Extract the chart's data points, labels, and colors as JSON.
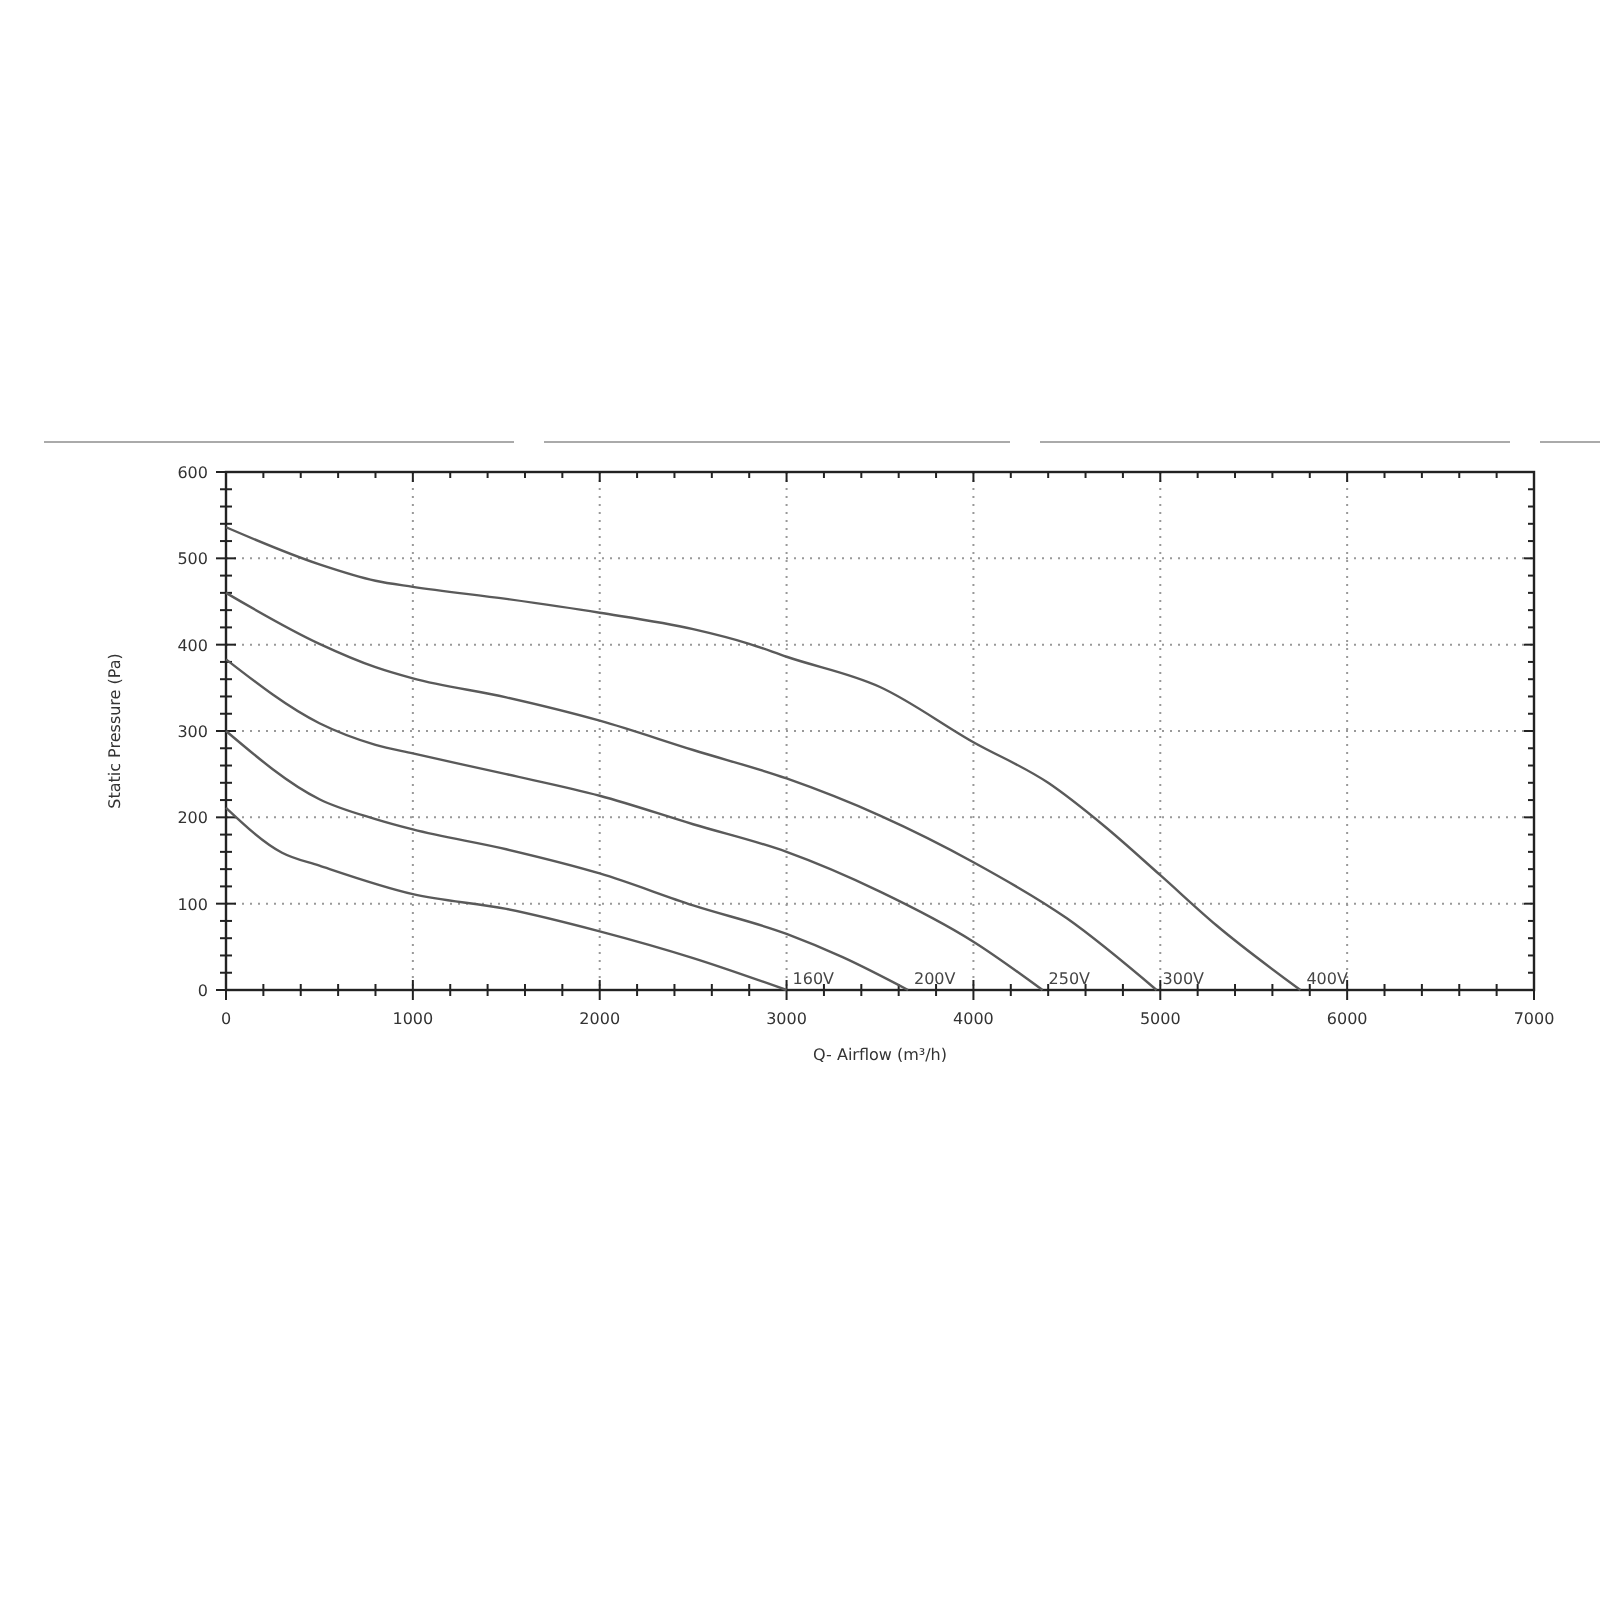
{
  "chart_data": {
    "type": "line",
    "xlabel": "Q- Airflow (m³/h)",
    "ylabel": "Static Pressure (Pa)",
    "xlim": [
      0,
      7000
    ],
    "ylim": [
      0,
      600
    ],
    "xticks": [
      0,
      {
        "value": 200,
        "label": null
      },
      {
        "value": 400,
        "label": null
      },
      {
        "value": 600,
        "label": null
      },
      {
        "value": 800,
        "label": null
      },
      1000,
      {
        "value": 1200,
        "label": null
      },
      {
        "value": 1400,
        "label": null
      },
      {
        "value": 1600,
        "label": null
      },
      {
        "value": 1800,
        "label": null
      },
      2000,
      {
        "value": 2200,
        "label": null
      },
      {
        "value": 2400,
        "label": null
      },
      {
        "value": 2600,
        "label": null
      },
      {
        "value": 2800,
        "label": null
      },
      3000,
      {
        "value": 3200,
        "label": null
      },
      {
        "value": 3400,
        "label": null
      },
      {
        "value": 3600,
        "label": null
      },
      {
        "value": 3800,
        "label": null
      },
      4000,
      {
        "value": 4200,
        "label": null
      },
      {
        "value": 4400,
        "label": null
      },
      {
        "value": 4600,
        "label": null
      },
      {
        "value": 4800,
        "label": null
      },
      5000,
      {
        "value": 5200,
        "label": null
      },
      {
        "value": 5400,
        "label": null
      },
      {
        "value": 5600,
        "label": null
      },
      {
        "value": 5800,
        "label": null
      },
      6000,
      {
        "value": 6200,
        "label": null
      },
      {
        "value": 6400,
        "label": null
      },
      {
        "value": 6600,
        "label": null
      },
      {
        "value": 6800,
        "label": null
      },
      7000
    ],
    "yticks": [
      0,
      {
        "value": 20,
        "label": null
      },
      {
        "value": 40,
        "label": null
      },
      {
        "value": 60,
        "label": null
      },
      {
        "value": 80,
        "label": null
      },
      100,
      {
        "value": 120,
        "label": null
      },
      {
        "value": 140,
        "label": null
      },
      {
        "value": 160,
        "label": null
      },
      {
        "value": 180,
        "label": null
      },
      200,
      {
        "value": 220,
        "label": null
      },
      {
        "value": 240,
        "label": null
      },
      {
        "value": 260,
        "label": null
      },
      {
        "value": 280,
        "label": null
      },
      300,
      {
        "value": 320,
        "label": null
      },
      {
        "value": 340,
        "label": null
      },
      {
        "value": 360,
        "label": null
      },
      {
        "value": 380,
        "label": null
      },
      400,
      {
        "value": 420,
        "label": null
      },
      {
        "value": 440,
        "label": null
      },
      {
        "value": 460,
        "label": null
      },
      {
        "value": 480,
        "label": null
      },
      500,
      {
        "value": 520,
        "label": null
      },
      {
        "value": 540,
        "label": null
      },
      {
        "value": 560,
        "label": null
      },
      {
        "value": 580,
        "label": null
      },
      600
    ],
    "grid": true,
    "line_style": "solid",
    "marker": "none",
    "legend": false,
    "series": [
      {
        "name": "160V",
        "color": "#5a5a5a",
        "x": [
          0,
          300,
          500,
          1000,
          1500,
          2000,
          2500,
          3000
        ],
        "values": [
          211,
          159,
          144,
          111,
          94,
          68,
          37,
          0
        ]
      },
      {
        "name": "200V",
        "color": "#5a5a5a",
        "x": [
          0,
          500,
          800,
          1000,
          1500,
          2000,
          2500,
          3000,
          3300,
          3650
        ],
        "values": [
          300,
          221,
          198,
          186,
          163,
          135,
          98,
          65,
          38,
          0
        ]
      },
      {
        "name": "250V",
        "color": "#5a5a5a",
        "x": [
          0,
          500,
          800,
          1000,
          1500,
          2000,
          2500,
          3000,
          3500,
          4000,
          4370
        ],
        "values": [
          383,
          309,
          284,
          274,
          250,
          225,
          192,
          160,
          114,
          56,
          0
        ]
      },
      {
        "name": "300V",
        "color": "#5a5a5a",
        "x": [
          0,
          500,
          800,
          1000,
          1500,
          2000,
          2500,
          3000,
          3500,
          4000,
          4500,
          4980
        ],
        "values": [
          460,
          401,
          374,
          361,
          339,
          312,
          278,
          245,
          202,
          148,
          83,
          0
        ]
      },
      {
        "name": "400V",
        "color": "#5a5a5a",
        "x": [
          0,
          500,
          800,
          1000,
          1500,
          2000,
          2500,
          2800,
          3000,
          3500,
          4000,
          4400,
          4700,
          5000,
          5300,
          5750
        ],
        "values": [
          536,
          493,
          474,
          467,
          453,
          437,
          418,
          401,
          386,
          351,
          287,
          240,
          190,
          133,
          75,
          0
        ]
      }
    ]
  }
}
